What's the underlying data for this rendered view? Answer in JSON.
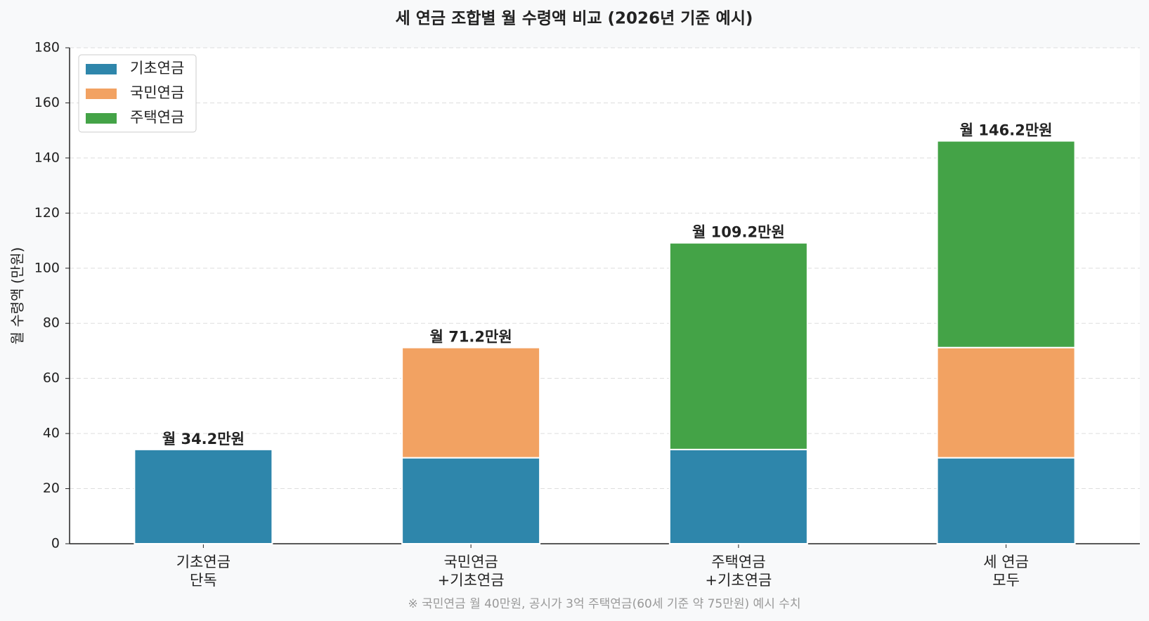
{
  "chart_data": {
    "type": "stacked_bar",
    "title": "세 연금 조합별 월 수령액 비교 (2026년 기준 예시)",
    "y_label": "월 수령액 (만원)",
    "footnote": "※ 국민연금 월 40만원, 공시가 3억 주택연금(60세 기준 약 75만원) 예시 수치",
    "categories": [
      "기초연금\n단독",
      "국민연금\n+기초연금",
      "주택연금\n+기초연금",
      "세 연금\n모두"
    ],
    "series": [
      {
        "name": "기초연금",
        "color": "#2e86ab",
        "values": [
          34.2,
          31.2,
          34.2,
          31.2
        ]
      },
      {
        "name": "국민연금",
        "color": "#f2a262",
        "values": [
          null,
          40,
          null,
          40
        ]
      },
      {
        "name": "주택연금",
        "color": "#44a347",
        "values": [
          null,
          null,
          75,
          75
        ]
      }
    ],
    "total_labels": [
      "월 34.2만원",
      "월 71.2만원",
      "월 109.2만원",
      "월 146.2만원"
    ],
    "ylim": [
      0,
      180
    ],
    "yticks": [
      0,
      20,
      40,
      60,
      80,
      100,
      120,
      140,
      160,
      180
    ],
    "grid": true,
    "legend": "upper-left"
  }
}
